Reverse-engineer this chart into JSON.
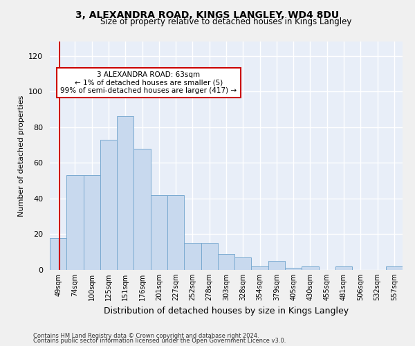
{
  "title": "3, ALEXANDRA ROAD, KINGS LANGLEY, WD4 8DU",
  "subtitle": "Size of property relative to detached houses in Kings Langley",
  "xlabel": "Distribution of detached houses by size in Kings Langley",
  "ylabel": "Number of detached properties",
  "bar_labels": [
    "49sqm",
    "74sqm",
    "100sqm",
    "125sqm",
    "151sqm",
    "176sqm",
    "201sqm",
    "227sqm",
    "252sqm",
    "278sqm",
    "303sqm",
    "328sqm",
    "354sqm",
    "379sqm",
    "405sqm",
    "430sqm",
    "455sqm",
    "481sqm",
    "506sqm",
    "532sqm",
    "557sqm"
  ],
  "bar_heights": [
    18,
    53,
    53,
    73,
    86,
    68,
    42,
    42,
    15,
    15,
    9,
    7,
    2,
    5,
    1,
    2,
    0,
    2,
    0,
    0,
    2
  ],
  "bar_color": "#c8d9ee",
  "bar_edge_color": "#7aaad0",
  "background_color": "#e8eef8",
  "grid_color": "#ffffff",
  "vline_color": "#cc0000",
  "annotation_text": "3 ALEXANDRA ROAD: 63sqm\n← 1% of detached houses are smaller (5)\n99% of semi-detached houses are larger (417) →",
  "annotation_box_color": "#ffffff",
  "annotation_box_edge": "#cc0000",
  "ylim": [
    0,
    128
  ],
  "yticks": [
    0,
    20,
    40,
    60,
    80,
    100,
    120
  ],
  "footer1": "Contains HM Land Registry data © Crown copyright and database right 2024.",
  "footer2": "Contains public sector information licensed under the Open Government Licence v3.0."
}
